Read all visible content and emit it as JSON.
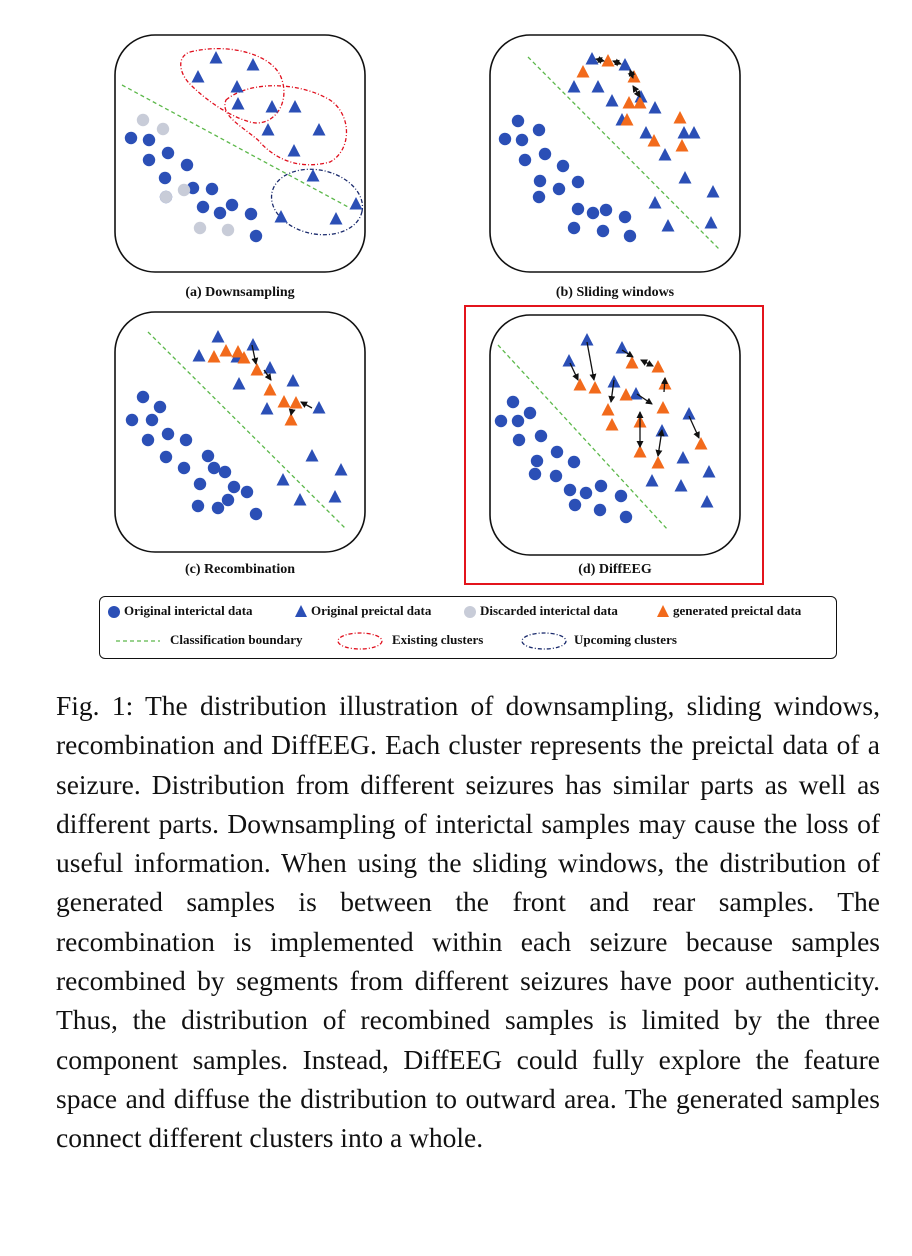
{
  "figure": {
    "panels": [
      {
        "label": "(a) Downsampling"
      },
      {
        "label": "(b) Sliding windows"
      },
      {
        "label": "(c) Recombination"
      },
      {
        "label": "(d) DiffEEG"
      }
    ],
    "legend": {
      "original_interictal": "Original interictal data",
      "original_preictal": "Original preictal data",
      "discarded_interictal": "Discarded interictal data",
      "generated_preictal": "generated preictal data",
      "classification_boundary": "Classification boundary",
      "existing_clusters": "Existing clusters",
      "upcoming_clusters": "Upcoming clusters"
    },
    "colors": {
      "blue": "#2b4fb6",
      "orange": "#f26a1b",
      "grey": "#c8ccd8",
      "green": "#5cb84a",
      "red": "#e0101e",
      "navy": "#1a2a6c",
      "highlight": "#e3141c"
    }
  },
  "caption": "Fig. 1: The distribution illustration of downsampling, sliding windows, recombination and DiffEEG. Each cluster represents the preictal data of a seizure. Distribution from different seizures has similar parts as well as different parts. Downsampling of interictal samples may cause the loss of useful information. When using the sliding windows, the distribution of generated samples is between the front and rear samples. The recombination is implemented within each seizure because samples recombined by segments from different seizures have poor authenticity. Thus, the distribution of recombined samples is limited by the three component samples. Instead, DiffEEG could fully explore the feature space and diffuse the distribution to outward area. The generated samples connect different clusters into a whole."
}
